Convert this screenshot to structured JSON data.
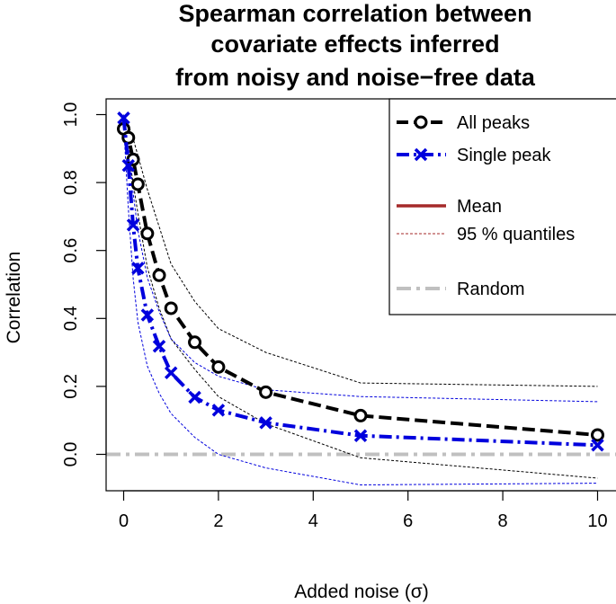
{
  "chart_data": {
    "type": "line",
    "title": [
      "Spearman correlation between",
      "covariate effects inferred",
      "from noisy and noise−free data"
    ],
    "xlabel": "Added noise (σ)",
    "ylabel": "Correlation",
    "xlim": [
      0,
      10
    ],
    "ylim": [
      -0.1,
      1.0
    ],
    "xticks": [
      "0",
      "2",
      "4",
      "6",
      "8",
      "10"
    ],
    "yticks": [
      "0.0",
      "0.2",
      "0.4",
      "0.6",
      "0.8",
      "1.0"
    ],
    "x": [
      0,
      0.1,
      0.2,
      0.3,
      0.5,
      0.75,
      1,
      1.5,
      2,
      3,
      5,
      10
    ],
    "series": [
      {
        "name": "All peaks",
        "color": "#000000",
        "marker": "circle",
        "values": [
          0.958,
          0.932,
          0.868,
          0.795,
          0.65,
          0.527,
          0.43,
          0.33,
          0.257,
          0.183,
          0.114,
          0.057
        ],
        "q_upper": [
          0.98,
          0.97,
          0.93,
          0.88,
          0.78,
          0.67,
          0.56,
          0.45,
          0.37,
          0.3,
          0.21,
          0.2
        ],
        "q_lower": [
          0.93,
          0.89,
          0.8,
          0.71,
          0.55,
          0.43,
          0.34,
          0.25,
          0.17,
          0.09,
          -0.01,
          -0.07
        ]
      },
      {
        "name": "Single peak",
        "color": "#0000dd",
        "marker": "x",
        "values": [
          0.99,
          0.85,
          0.675,
          0.548,
          0.41,
          0.318,
          0.24,
          0.168,
          0.13,
          0.093,
          0.055,
          0.027
        ],
        "q_upper": [
          1.0,
          0.92,
          0.77,
          0.66,
          0.52,
          0.42,
          0.34,
          0.27,
          0.23,
          0.19,
          0.17,
          0.155
        ],
        "q_lower": [
          0.97,
          0.72,
          0.52,
          0.39,
          0.26,
          0.18,
          0.12,
          0.05,
          0.0,
          -0.04,
          -0.09,
          -0.085
        ]
      }
    ],
    "reference": {
      "name": "Random",
      "value": 0.0,
      "color": "#c0c0c0"
    },
    "legend": {
      "position": "top-right",
      "entries": [
        {
          "label": "All peaks",
          "style": "black-dashed-circle"
        },
        {
          "label": "Single peak",
          "style": "blue-dashdot-x"
        },
        {
          "label": "Mean",
          "style": "darkred-solid",
          "color": "#a52a2a"
        },
        {
          "label": "95 % quantiles",
          "style": "darkred-dotted",
          "color": "#a52a2a"
        },
        {
          "label": "Random",
          "style": "gray-dashdot",
          "color": "#c0c0c0"
        }
      ]
    }
  }
}
